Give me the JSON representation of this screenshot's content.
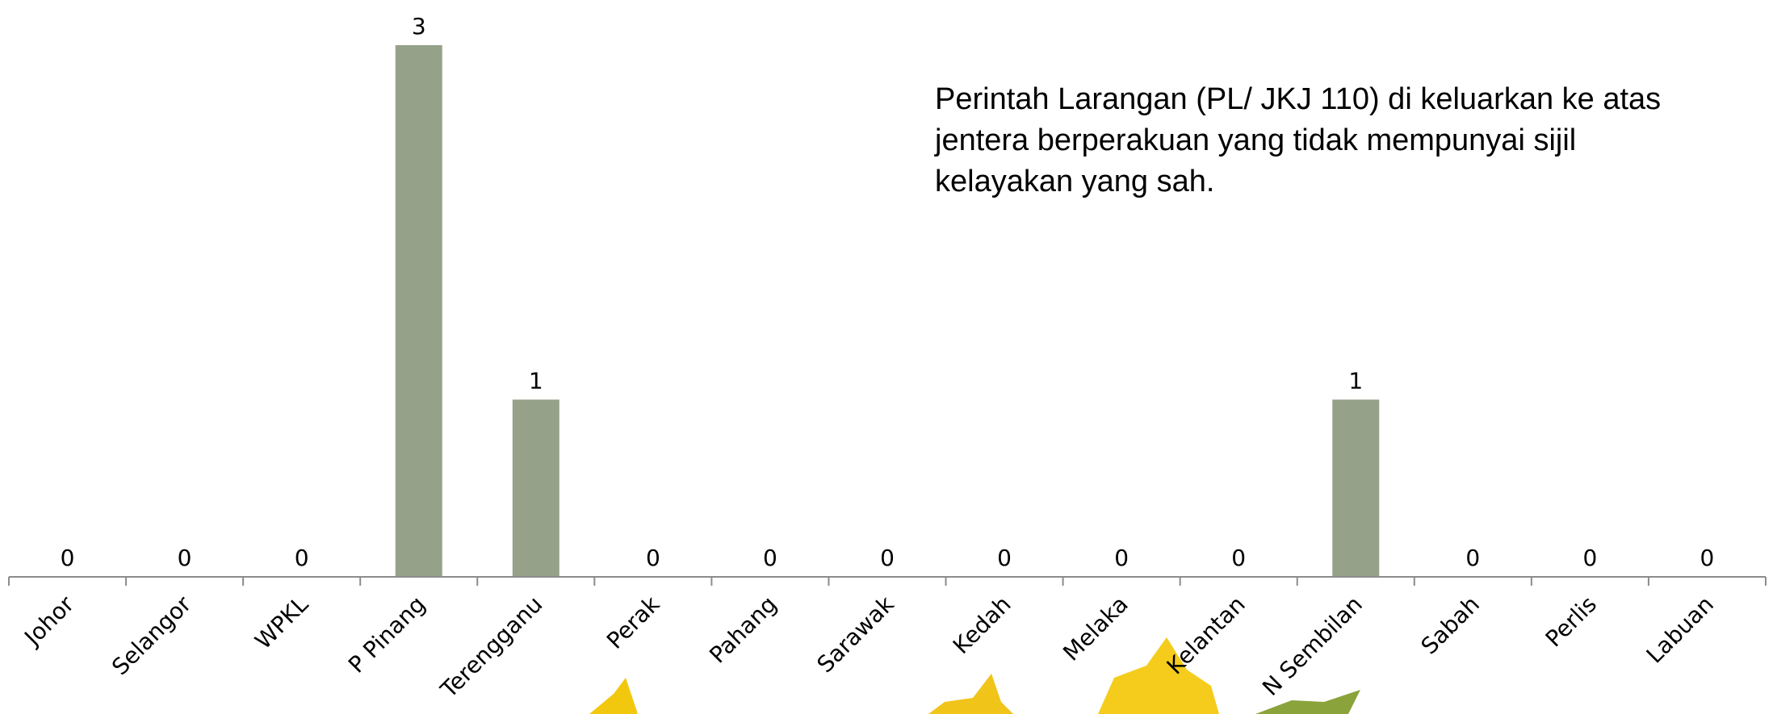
{
  "chart_data": {
    "type": "bar",
    "annotation": "Perintah Larangan (PL/ JKJ 110) di keluarkan ke atas jentera berperakuan yang tidak mempunyai sijil kelayakan yang sah.",
    "categories": [
      "Johor",
      "Selangor",
      "WPKL",
      "P Pinang",
      "Terengganu",
      "Perak",
      "Pahang",
      "Sarawak",
      "Kedah",
      "Melaka",
      "Kelantan",
      "N Sembilan",
      "Sabah",
      "Perlis",
      "Labuan"
    ],
    "values": [
      0,
      0,
      0,
      3,
      1,
      0,
      0,
      0,
      0,
      0,
      0,
      1,
      0,
      0,
      0
    ],
    "color": "#95a189",
    "ylim": [
      0,
      3
    ]
  }
}
